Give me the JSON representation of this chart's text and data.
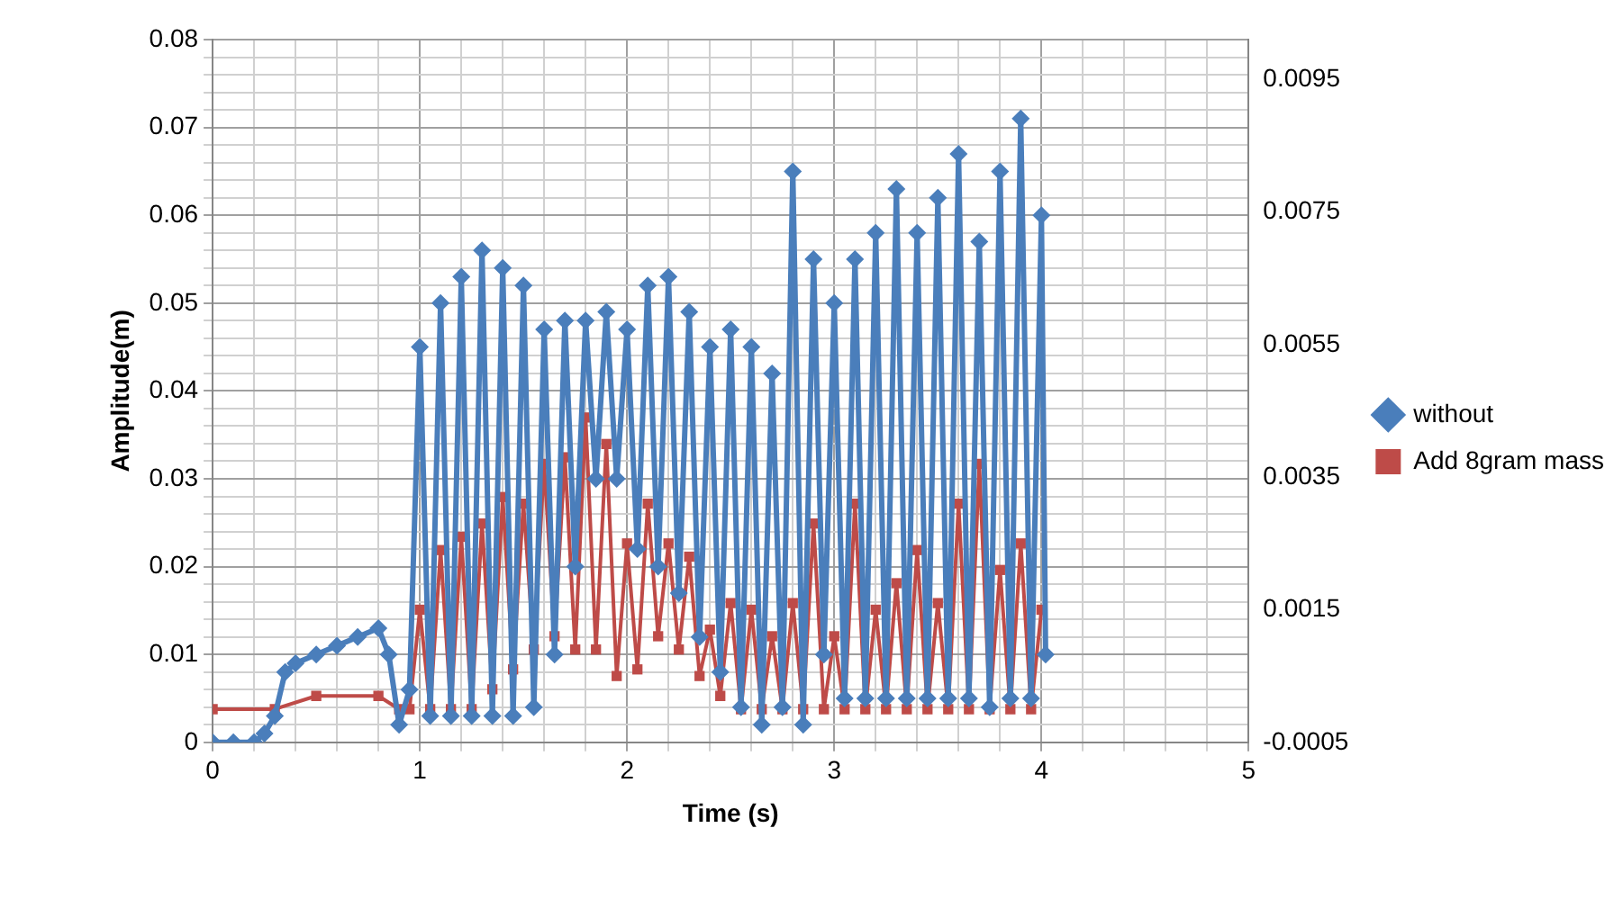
{
  "chart_data": {
    "type": "line",
    "xlabel": "Time (s)",
    "ylabel": "Amplitude(m)",
    "legend": "right",
    "grid": true,
    "line_style": "solid",
    "xlim": [
      0,
      5
    ],
    "ylim": [
      0,
      0.08
    ],
    "y2lim": [
      -0.0005,
      0.0101
    ],
    "xticks": [
      0,
      {
        "value": 0.2,
        "label": null
      },
      {
        "value": 0.4,
        "label": null
      },
      {
        "value": 0.6,
        "label": null
      },
      {
        "value": 0.8,
        "label": null
      },
      1,
      {
        "value": 1.2,
        "label": null
      },
      {
        "value": 1.4,
        "label": null
      },
      {
        "value": 1.6,
        "label": null
      },
      {
        "value": 1.8,
        "label": null
      },
      2,
      {
        "value": 2.2,
        "label": null
      },
      {
        "value": 2.4,
        "label": null
      },
      {
        "value": 2.6,
        "label": null
      },
      {
        "value": 2.8,
        "label": null
      },
      3,
      {
        "value": 3.2,
        "label": null
      },
      {
        "value": 3.4,
        "label": null
      },
      {
        "value": 3.6,
        "label": null
      },
      {
        "value": 3.8,
        "label": null
      },
      4,
      {
        "value": 4.2,
        "label": null
      },
      {
        "value": 4.4,
        "label": null
      },
      {
        "value": 4.6,
        "label": null
      },
      {
        "value": 4.8,
        "label": null
      },
      5
    ],
    "yticks": [
      0,
      {
        "value": 0.002,
        "label": null
      },
      {
        "value": 0.004,
        "label": null
      },
      {
        "value": 0.006,
        "label": null
      },
      {
        "value": 0.008,
        "label": null
      },
      0.01,
      {
        "value": 0.012,
        "label": null
      },
      {
        "value": 0.014,
        "label": null
      },
      {
        "value": 0.016,
        "label": null
      },
      {
        "value": 0.018,
        "label": null
      },
      0.02,
      {
        "value": 0.022,
        "label": null
      },
      {
        "value": 0.024,
        "label": null
      },
      {
        "value": 0.026,
        "label": null
      },
      {
        "value": 0.028,
        "label": null
      },
      0.03,
      {
        "value": 0.032,
        "label": null
      },
      {
        "value": 0.034,
        "label": null
      },
      {
        "value": 0.036,
        "label": null
      },
      {
        "value": 0.038,
        "label": null
      },
      0.04,
      {
        "value": 0.042,
        "label": null
      },
      {
        "value": 0.044,
        "label": null
      },
      {
        "value": 0.046,
        "label": null
      },
      {
        "value": 0.048,
        "label": null
      },
      0.05,
      {
        "value": 0.052,
        "label": null
      },
      {
        "value": 0.054,
        "label": null
      },
      {
        "value": 0.056,
        "label": null
      },
      {
        "value": 0.058,
        "label": null
      },
      0.06,
      {
        "value": 0.062,
        "label": null
      },
      {
        "value": 0.064,
        "label": null
      },
      {
        "value": 0.066,
        "label": null
      },
      {
        "value": 0.068,
        "label": null
      },
      0.07,
      {
        "value": 0.072,
        "label": null
      },
      {
        "value": 0.074,
        "label": null
      },
      {
        "value": 0.076,
        "label": null
      },
      {
        "value": 0.078,
        "label": null
      },
      0.08
    ],
    "y2ticks": [
      -0.0005,
      0.0015,
      0.0035,
      0.0055,
      0.0075,
      0.0095
    ],
    "series": [
      {
        "name": "without",
        "color": "#4a7ebb",
        "marker": "diamond",
        "x": [
          0,
          0.1,
          0.2,
          0.25,
          0.3,
          0.35,
          0.4,
          0.5,
          0.6,
          0.7,
          0.8,
          0.85,
          0.9,
          0.95,
          1.0,
          1.05,
          1.1,
          1.15,
          1.2,
          1.25,
          1.3,
          1.35,
          1.4,
          1.45,
          1.5,
          1.55,
          1.6,
          1.65,
          1.7,
          1.75,
          1.8,
          1.85,
          1.9,
          1.95,
          2.0,
          2.05,
          2.1,
          2.15,
          2.2,
          2.25,
          2.3,
          2.35,
          2.4,
          2.45,
          2.5,
          2.55,
          2.6,
          2.65,
          2.7,
          2.75,
          2.8,
          2.85,
          2.9,
          2.95,
          3.0,
          3.05,
          3.1,
          3.15,
          3.2,
          3.25,
          3.3,
          3.35,
          3.4,
          3.45,
          3.5,
          3.55,
          3.6,
          3.65,
          3.7,
          3.75,
          3.8,
          3.85,
          3.9,
          3.95,
          4.0,
          4.02
        ],
        "values": [
          0,
          0,
          0,
          0.001,
          0.003,
          0.008,
          0.009,
          0.01,
          0.011,
          0.012,
          0.013,
          0.01,
          0.002,
          0.006,
          0.045,
          0.003,
          0.05,
          0.003,
          0.053,
          0.003,
          0.056,
          0.003,
          0.054,
          0.003,
          0.052,
          0.004,
          0.047,
          0.01,
          0.048,
          0.02,
          0.048,
          0.03,
          0.049,
          0.03,
          0.047,
          0.022,
          0.052,
          0.02,
          0.053,
          0.017,
          0.049,
          0.012,
          0.045,
          0.008,
          0.047,
          0.004,
          0.045,
          0.002,
          0.042,
          0.004,
          0.065,
          0.002,
          0.055,
          0.01,
          0.05,
          0.005,
          0.055,
          0.005,
          0.058,
          0.005,
          0.063,
          0.005,
          0.058,
          0.005,
          0.062,
          0.005,
          0.067,
          0.005,
          0.057,
          0.004,
          0.065,
          0.005,
          0.071,
          0.005,
          0.06,
          0.01
        ]
      },
      {
        "name": "Add 8gram mass",
        "color": "#be4b48",
        "marker": "square",
        "axis": "y2",
        "x": [
          0,
          0.3,
          0.5,
          0.8,
          0.9,
          0.95,
          1.0,
          1.05,
          1.1,
          1.15,
          1.2,
          1.25,
          1.3,
          1.35,
          1.4,
          1.45,
          1.5,
          1.55,
          1.6,
          1.65,
          1.7,
          1.75,
          1.8,
          1.85,
          1.9,
          1.95,
          2.0,
          2.05,
          2.1,
          2.15,
          2.2,
          2.25,
          2.3,
          2.35,
          2.4,
          2.45,
          2.5,
          2.55,
          2.6,
          2.65,
          2.7,
          2.75,
          2.8,
          2.85,
          2.9,
          2.95,
          3.0,
          3.05,
          3.1,
          3.15,
          3.2,
          3.25,
          3.3,
          3.35,
          3.4,
          3.45,
          3.5,
          3.55,
          3.6,
          3.65,
          3.7,
          3.75,
          3.8,
          3.85,
          3.9,
          3.95,
          4.0
        ],
        "values": [
          0,
          0,
          0.0002,
          0.0002,
          0,
          0,
          0.0015,
          0,
          0.0024,
          0,
          0.0026,
          0,
          0.0028,
          0.0003,
          0.0032,
          0.0006,
          0.0031,
          0.0009,
          0.0037,
          0.0011,
          0.0038,
          0.0009,
          0.0044,
          0.0009,
          0.004,
          0.0005,
          0.0025,
          0.0006,
          0.0031,
          0.0011,
          0.0025,
          0.0009,
          0.0023,
          0.0005,
          0.0012,
          0.0002,
          0.0016,
          0,
          0.0015,
          0,
          0.0011,
          0,
          0.0016,
          0,
          0.0028,
          0,
          0.0011,
          0,
          0.0031,
          0,
          0.0015,
          0,
          0.0019,
          0,
          0.0024,
          0,
          0.0016,
          0,
          0.0031,
          0,
          0.0037,
          0,
          0.0021,
          0,
          0.0025,
          0,
          0.0015
        ]
      }
    ]
  }
}
